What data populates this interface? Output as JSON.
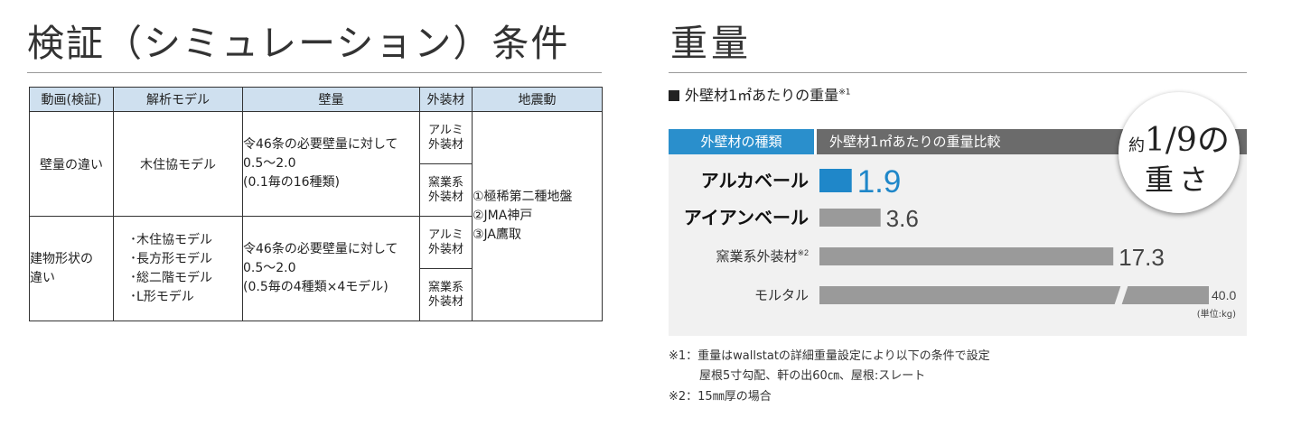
{
  "left": {
    "title": "検証（シミュレーション）条件",
    "table": {
      "headers": [
        "動画(検証)",
        "解析モデル",
        "壁量",
        "外装材",
        "地震動"
      ],
      "rows": [
        {
          "video": "壁量の違い",
          "models": [
            "木住協モデル"
          ],
          "wall": [
            "令46条の必要壁量に対して",
            "0.5～2.0",
            "(0.1毎の16種類)"
          ],
          "exteriors": [
            [
              "アルミ",
              "外装材"
            ],
            [
              "窯業系",
              "外装材"
            ]
          ]
        },
        {
          "video": [
            "建物形状の",
            "違い"
          ],
          "models": [
            "･木住協モデル",
            "･長方形モデル",
            "･総二階モデル",
            "･L形モデル"
          ],
          "wall": [
            "令46条の必要壁量に対して",
            "0.5～2.0",
            "(0.5毎の4種類×4モデル)"
          ],
          "exteriors": [
            [
              "アルミ",
              "外装材"
            ],
            [
              "窯業系",
              "外装材"
            ]
          ]
        }
      ],
      "earthquakes": [
        "①極稀第二種地盤",
        "②JMA神戸",
        "③JA鷹取"
      ]
    }
  },
  "right": {
    "title": "重量",
    "subtitle": "外壁材1㎡あたりの重量",
    "subtitle_note": "※1",
    "head_type": "外壁材の種類",
    "head_comparison": "外壁材1㎡あたりの重量比較",
    "badge": {
      "prefix": "約",
      "fraction": "1/9",
      "suffix": "の",
      "line2": "重さ"
    },
    "unit": "(単位:kg)",
    "notes": [
      "※1：重量はwallstatの詳細重量設定により以下の条件で設定",
      "屋根5寸勾配、軒の出60㎝、屋根:スレート",
      "※2：15㎜厚の場合"
    ]
  },
  "chart_data": {
    "type": "bar",
    "orientation": "horizontal",
    "title": "外壁材1㎡あたりの重量比較",
    "categories": [
      "アルカベール",
      "アイアンベール",
      "窯業系外装材",
      "モルタル"
    ],
    "category_notes": [
      "",
      "",
      "※2",
      ""
    ],
    "values": [
      1.9,
      3.6,
      17.3,
      40.0
    ],
    "value_labels": [
      "1.9",
      "3.6",
      "17.3",
      "40.0"
    ],
    "unit": "kg",
    "axis_break": true,
    "colors": {
      "highlight": "#1f87c9",
      "bar": "#9a9a9a",
      "background": "#f1f1f1"
    }
  }
}
